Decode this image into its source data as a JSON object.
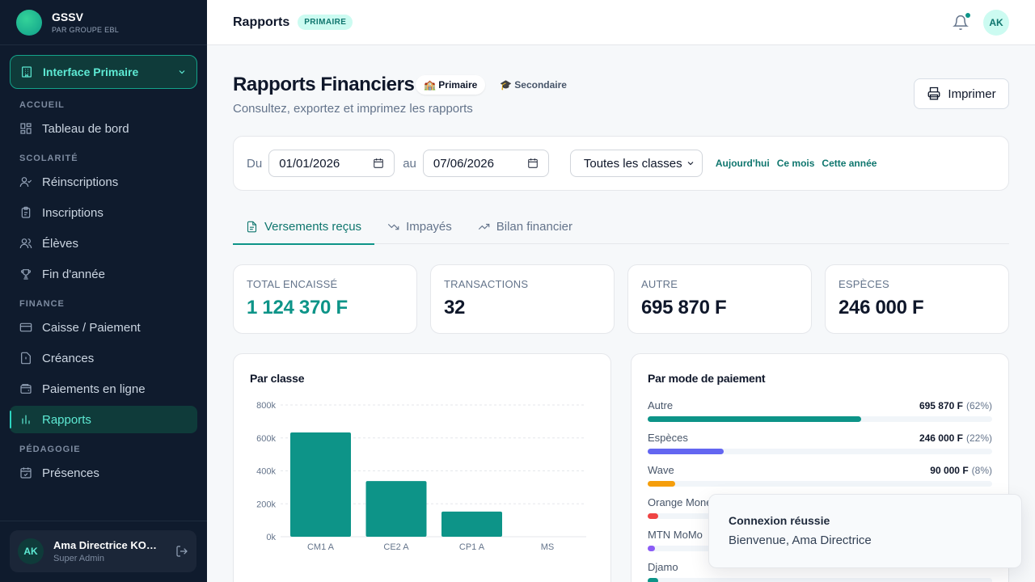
{
  "brand": {
    "name": "GSSV",
    "subtitle": "PAR GROUPE EBL"
  },
  "interface_switch": {
    "label": "Interface Primaire"
  },
  "sidebar": {
    "sections": [
      {
        "label": "ACCUEIL",
        "items": [
          {
            "label": "Tableau de bord",
            "icon": "dashboard-icon"
          }
        ]
      },
      {
        "label": "SCOLARITÉ",
        "items": [
          {
            "label": "Réinscriptions",
            "icon": "user-check-icon"
          },
          {
            "label": "Inscriptions",
            "icon": "clipboard-icon"
          },
          {
            "label": "Élèves",
            "icon": "users-icon"
          },
          {
            "label": "Fin d'année",
            "icon": "trophy-icon"
          }
        ]
      },
      {
        "label": "FINANCE",
        "items": [
          {
            "label": "Caisse / Paiement",
            "icon": "credit-card-icon"
          },
          {
            "label": "Créances",
            "icon": "file-alert-icon"
          },
          {
            "label": "Paiements en ligne",
            "icon": "wallet-icon"
          },
          {
            "label": "Rapports",
            "icon": "bar-chart-icon",
            "active": true
          }
        ]
      },
      {
        "label": "PÉDAGOGIE",
        "items": [
          {
            "label": "Présences",
            "icon": "calendar-check-icon"
          }
        ]
      }
    ]
  },
  "user": {
    "initials": "AK",
    "name": "Ama Directrice KON...",
    "role": "Super Admin"
  },
  "topbar": {
    "title": "Rapports",
    "badge": "PRIMAIRE",
    "avatar": "AK"
  },
  "page": {
    "title": "Rapports Financiers",
    "pill_primary": "🏫 Primaire",
    "pill_secondary": "🎓 Secondaire",
    "subtitle": "Consultez, exportez et imprimez les rapports",
    "print_label": "Imprimer"
  },
  "filters": {
    "from_label": "Du",
    "from_value": "01/01/2026",
    "to_label": "au",
    "to_value": "07/06/2026",
    "class_select": "Toutes les classes",
    "quick": [
      "Aujourd'hui",
      "Ce mois",
      "Cette année"
    ]
  },
  "tabs": [
    {
      "label": "Versements reçus",
      "active": true
    },
    {
      "label": "Impayés"
    },
    {
      "label": "Bilan financier"
    }
  ],
  "stats": [
    {
      "label": "TOTAL ENCAISSÉ",
      "value": "1 124 370 F",
      "accent": true
    },
    {
      "label": "TRANSACTIONS",
      "value": "32"
    },
    {
      "label": "AUTRE",
      "value": "695 870 F"
    },
    {
      "label": "ESPÈCES",
      "value": "246 000 F"
    }
  ],
  "class_card": {
    "title": "Par classe"
  },
  "payment_card": {
    "title": "Par mode de paiement",
    "methods": [
      {
        "name": "Autre",
        "amount": "695 870 F",
        "pct": "(62%)",
        "fraction": 0.62,
        "color": "#0d9488"
      },
      {
        "name": "Espèces",
        "amount": "246 000 F",
        "pct": "(22%)",
        "fraction": 0.22,
        "color": "#6366f1"
      },
      {
        "name": "Wave",
        "amount": "90 000 F",
        "pct": "(8%)",
        "fraction": 0.08,
        "color": "#f59e0b"
      },
      {
        "name": "Orange Money",
        "amount": "",
        "pct": "",
        "fraction": 0.03,
        "color": "#ef4444"
      },
      {
        "name": "MTN MoMo",
        "amount": "",
        "pct": "",
        "fraction": 0.02,
        "color": "#8b5cf6"
      },
      {
        "name": "Djamo",
        "amount": "",
        "pct": "",
        "fraction": 0.03,
        "color": "#0d9488"
      }
    ]
  },
  "toast": {
    "title": "Connexion réussie",
    "message": "Bienvenue, Ama Directrice"
  },
  "chart_data": {
    "type": "bar",
    "title": "Par classe",
    "categories": [
      "CM1 A",
      "CE2 A",
      "CP1 A",
      "MS"
    ],
    "values": [
      633000,
      338000,
      153000,
      0
    ],
    "yticks": [
      "0k",
      "200k",
      "400k",
      "600k",
      "800k"
    ],
    "ylim": [
      0,
      800000
    ],
    "grid": true,
    "color": "#0d9488"
  }
}
